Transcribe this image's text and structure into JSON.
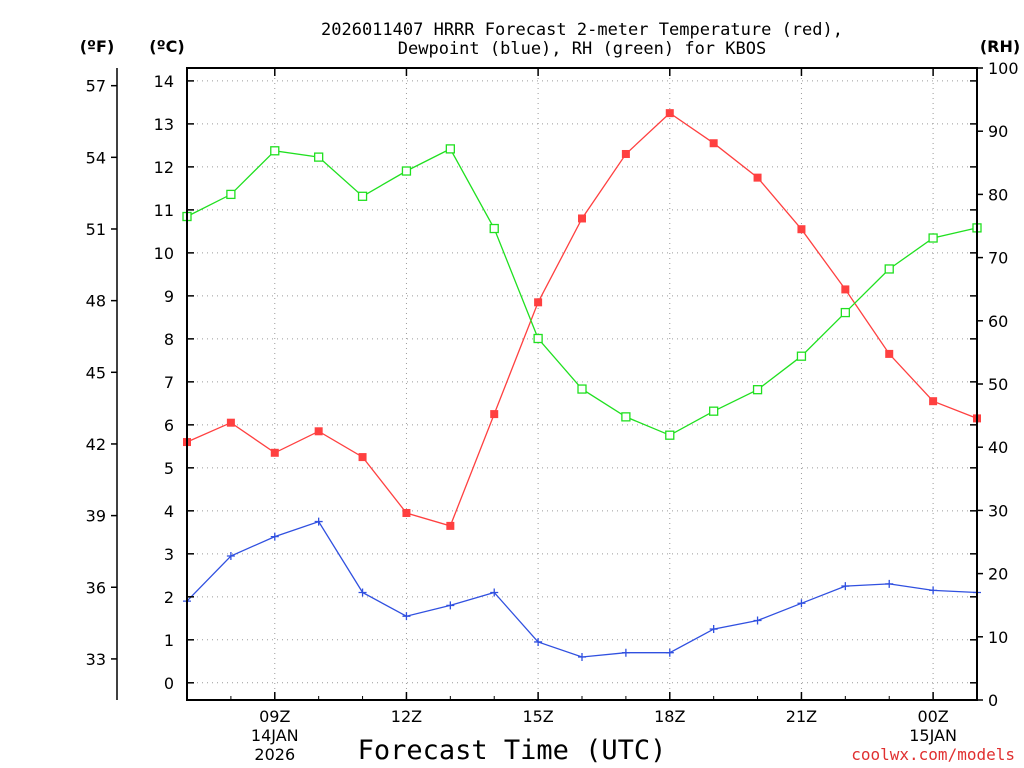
{
  "chart_data": {
    "type": "line",
    "title_line1": "2026011407 HRRR Forecast 2-meter Temperature (red),",
    "title_line2": "Dewpoint (blue), RH (green) for KBOS",
    "xlabel": "Forecast Time (UTC)",
    "credit": "coolwx.com/models",
    "units": {
      "fahrenheit": "(ºF)",
      "celsius": "(ºC)",
      "rh": "(RH)"
    },
    "x_hours": [
      7,
      8,
      9,
      10,
      11,
      12,
      13,
      14,
      15,
      16,
      17,
      18,
      19,
      20,
      21,
      22,
      23,
      24,
      25
    ],
    "xlim": [
      7,
      25
    ],
    "x_ticks": [
      {
        "hour": 9,
        "label": "09Z",
        "sub1": "14JAN",
        "sub2": "2026"
      },
      {
        "hour": 12,
        "label": "12Z",
        "sub1": "",
        "sub2": ""
      },
      {
        "hour": 15,
        "label": "15Z",
        "sub1": "",
        "sub2": ""
      },
      {
        "hour": 18,
        "label": "18Z",
        "sub1": "",
        "sub2": ""
      },
      {
        "hour": 21,
        "label": "21Z",
        "sub1": "",
        "sub2": ""
      },
      {
        "hour": 24,
        "label": "00Z",
        "sub1": "15JAN",
        "sub2": ""
      }
    ],
    "celsius_ylim": [
      -0.4,
      14.3
    ],
    "celsius_ticks": [
      "0",
      "1",
      "2",
      "3",
      "4",
      "5",
      "6",
      "7",
      "8",
      "9",
      "10",
      "11",
      "12",
      "13",
      "14"
    ],
    "fahrenheit_ticks": [
      "33",
      "36",
      "39",
      "42",
      "45",
      "48",
      "51",
      "54",
      "57"
    ],
    "rh_ylim": [
      0,
      100
    ],
    "rh_ticks": [
      "0",
      "10",
      "20",
      "30",
      "40",
      "50",
      "60",
      "70",
      "80",
      "90",
      "100"
    ],
    "series": [
      {
        "name": "2-meter Temperature",
        "axis": "celsius",
        "color": "#ff4040",
        "marker": "filled-square",
        "values": [
          5.6,
          6.05,
          5.35,
          5.85,
          5.25,
          3.95,
          3.65,
          6.25,
          8.85,
          10.8,
          12.3,
          13.25,
          12.55,
          11.75,
          10.55,
          9.15,
          7.65,
          6.55,
          6.15
        ]
      },
      {
        "name": "Dewpoint",
        "axis": "celsius",
        "color": "#3050e0",
        "marker": "plus",
        "values": [
          1.9,
          2.95,
          3.4,
          3.75,
          2.1,
          1.55,
          1.8,
          2.1,
          0.95,
          0.6,
          0.7,
          0.7,
          1.25,
          1.45,
          1.85,
          2.25,
          2.3,
          2.15,
          2.1
        ]
      },
      {
        "name": "RH",
        "axis": "rh",
        "color": "#20e020",
        "marker": "open-square",
        "values": [
          76.5,
          80,
          86.9,
          85.9,
          79.7,
          83.7,
          87.2,
          74.6,
          57.2,
          49.2,
          44.8,
          41.9,
          45.7,
          49.1,
          54.4,
          61.3,
          68.2,
          73.1,
          74.7
        ]
      }
    ]
  }
}
